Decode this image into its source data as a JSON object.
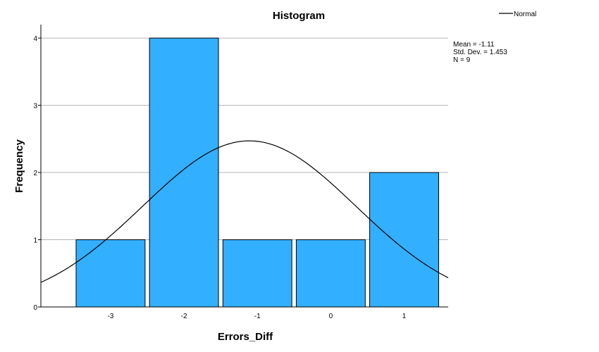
{
  "chart_data": {
    "type": "bar",
    "title": "Histogram",
    "xlabel": "Errors_Diff",
    "ylabel": "Frequency",
    "categories": [
      "-3",
      "-2",
      "-1",
      "0",
      "1"
    ],
    "values": [
      1,
      4,
      1,
      1,
      2
    ],
    "ylim": [
      0,
      4.2
    ],
    "yticks": [
      "0",
      "1",
      "2",
      "3",
      "4"
    ],
    "xlim": [
      -3.95,
      1.6
    ],
    "grid": true,
    "legend": {
      "placement": "top-right",
      "entries": [
        "Normal"
      ]
    },
    "stats": {
      "mean": "Mean = -1.11",
      "std_dev": "Std. Dev. = 1.453",
      "n": "N = 9"
    },
    "normal_curve": {
      "mean": -1.11,
      "sd": 1.453,
      "n": 9,
      "bin_width": 1
    },
    "colors": {
      "bar_fill": "#33afff",
      "bar_stroke": "#000000",
      "grid": "#b4b4b4",
      "axis": "#000000",
      "curve": "#000000"
    }
  }
}
